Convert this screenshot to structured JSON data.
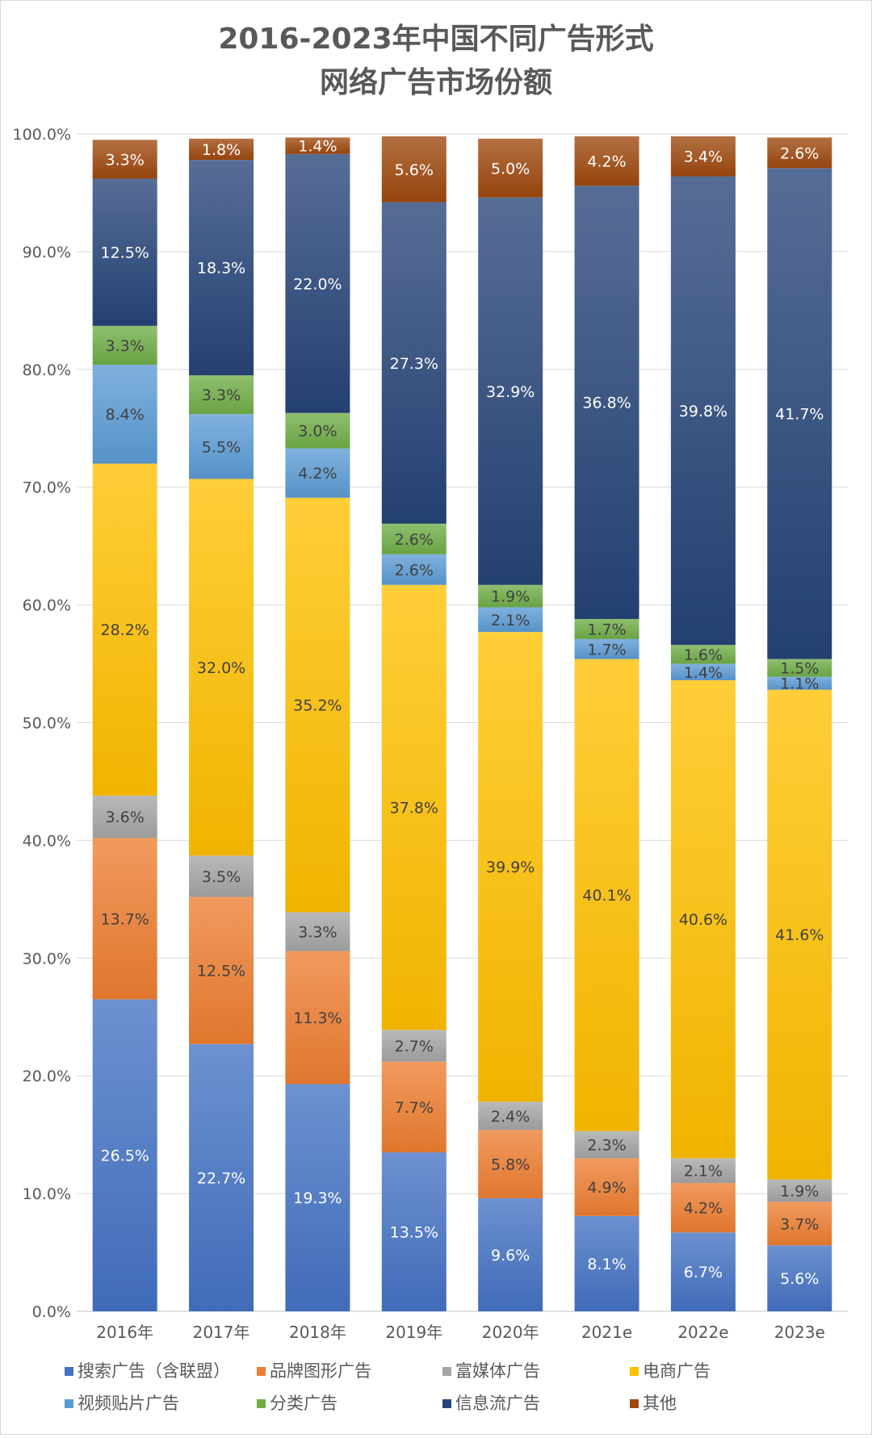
{
  "chart_data": {
    "type": "bar",
    "stacked": true,
    "title_line1": "2016-2023年中国不同广告形式",
    "title_line2": "网络广告市场份额",
    "categories": [
      "2016年",
      "2017年",
      "2018年",
      "2019年",
      "2020年",
      "2021e",
      "2022e",
      "2023e"
    ],
    "ylim": [
      0,
      100
    ],
    "y_ticks": [
      "0.0%",
      "10.0%",
      "20.0%",
      "30.0%",
      "40.0%",
      "50.0%",
      "60.0%",
      "70.0%",
      "80.0%",
      "90.0%",
      "100.0%"
    ],
    "grid": true,
    "legend_position": "bottom",
    "series": [
      {
        "name": "搜索广告（含联盟）",
        "color": "#4472C4",
        "values": [
          26.5,
          22.7,
          19.3,
          13.5,
          9.6,
          8.1,
          6.7,
          5.6
        ],
        "labels": [
          "26.5%",
          "22.7%",
          "19.3%",
          "13.5%",
          "9.6%",
          "8.1%",
          "6.7%",
          "5.6%"
        ]
      },
      {
        "name": "品牌图形广告",
        "color": "#ED7D31",
        "values": [
          13.7,
          12.5,
          11.3,
          7.7,
          5.8,
          4.9,
          4.2,
          3.7
        ],
        "labels": [
          "13.7%",
          "12.5%",
          "11.3%",
          "7.7%",
          "5.8%",
          "4.9%",
          "4.2%",
          "3.7%"
        ]
      },
      {
        "name": "富媒体广告",
        "color": "#A5A5A5",
        "values": [
          3.6,
          3.5,
          3.3,
          2.7,
          2.4,
          2.3,
          2.1,
          1.9
        ],
        "labels": [
          "3.6%",
          "3.5%",
          "3.3%",
          "2.7%",
          "2.4%",
          "2.3%",
          "2.1%",
          "1.9%"
        ]
      },
      {
        "name": "电商广告",
        "color": "#FFC000",
        "values": [
          28.2,
          32.0,
          35.2,
          37.8,
          39.9,
          40.1,
          40.6,
          41.6
        ],
        "labels": [
          "28.2%",
          "32.0%",
          "35.2%",
          "37.8%",
          "39.9%",
          "40.1%",
          "40.6%",
          "41.6%"
        ]
      },
      {
        "name": "视频贴片广告",
        "color": "#5B9BD5",
        "values": [
          8.4,
          5.5,
          4.2,
          2.6,
          2.1,
          1.7,
          1.4,
          1.1
        ],
        "labels": [
          "8.4%",
          "5.5%",
          "4.2%",
          "2.6%",
          "2.1%",
          "1.7%",
          "1.4%",
          "1.1%"
        ]
      },
      {
        "name": "分类广告",
        "color": "#70AD47",
        "values": [
          3.3,
          3.3,
          3.0,
          2.6,
          1.9,
          1.7,
          1.6,
          1.5
        ],
        "labels": [
          "3.3%",
          "3.3%",
          "3.0%",
          "2.6%",
          "1.9%",
          "1.7%",
          "1.6%",
          "1.5%"
        ]
      },
      {
        "name": "信息流广告",
        "color": "#264478",
        "values": [
          12.5,
          18.3,
          22.0,
          27.3,
          32.9,
          36.8,
          39.8,
          41.7
        ],
        "labels": [
          "12.5%",
          "18.3%",
          "22.0%",
          "27.3%",
          "32.9%",
          "36.8%",
          "39.8%",
          "41.7%"
        ]
      },
      {
        "name": "其他",
        "color": "#9E480E",
        "values": [
          3.3,
          1.8,
          1.4,
          5.6,
          5.0,
          4.2,
          3.4,
          2.6
        ],
        "labels": [
          "3.3%",
          "1.8%",
          "1.4%",
          "5.6%",
          "5.0%",
          "4.2%",
          "3.4%",
          "2.6%"
        ]
      }
    ]
  }
}
